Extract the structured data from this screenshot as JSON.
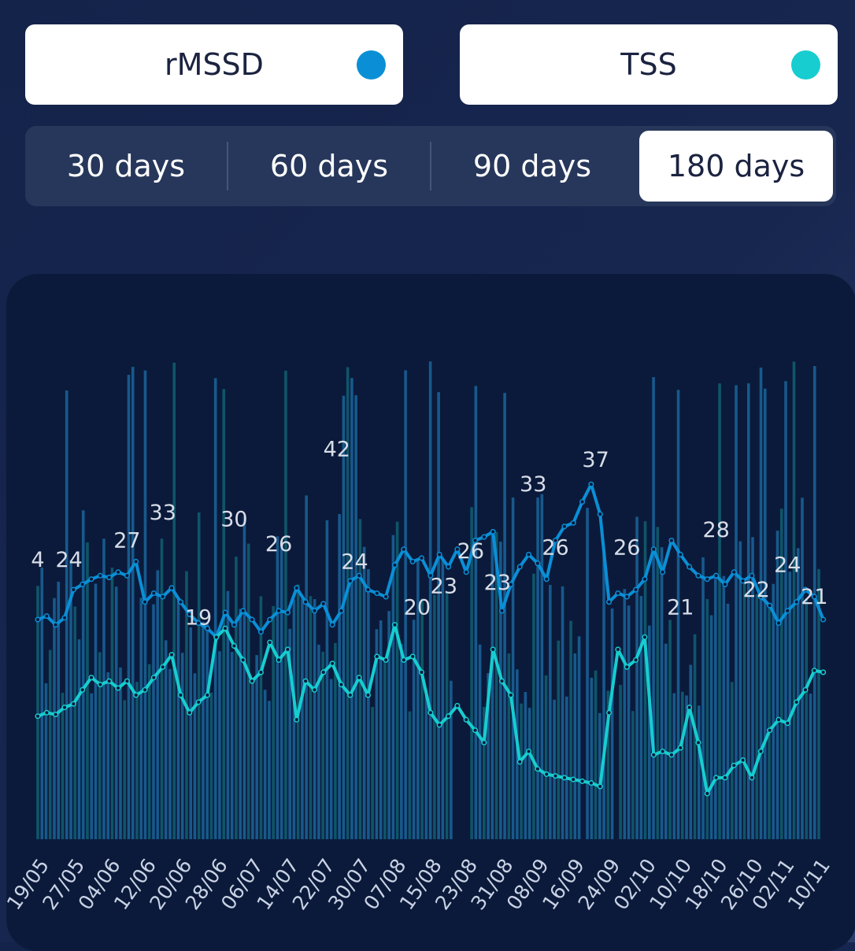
{
  "metrics": [
    {
      "label": "rMSSD",
      "color": "#0a8fd6"
    },
    {
      "label": "TSS",
      "color": "#17cdd0"
    }
  ],
  "ranges": [
    {
      "label": "30 days",
      "active": false
    },
    {
      "label": "60 days",
      "active": false
    },
    {
      "label": "90 days",
      "active": false
    },
    {
      "label": "180 days",
      "active": true
    }
  ],
  "chart_data": {
    "type": "line",
    "x_ticks": [
      "19/05",
      "27/05",
      "04/06",
      "12/06",
      "20/06",
      "28/06",
      "06/07",
      "14/07",
      "22/07",
      "30/07",
      "07/08",
      "15/08",
      "23/08",
      "31/08",
      "08/09",
      "16/09",
      "24/09",
      "02/10",
      "10/10",
      "18/10",
      "26/10",
      "02/11",
      "10/11"
    ],
    "series": [
      {
        "name": "rMSSD",
        "color": "#0a8fd6",
        "points": [
          [
            "19/05",
            0.95
          ],
          [
            "21/05",
            0.97
          ],
          [
            "23/05",
            0.92
          ],
          [
            "25/05",
            0.96
          ],
          [
            "27/05",
            1.12
          ],
          [
            "29/05",
            1.15
          ],
          [
            "31/05",
            1.18
          ],
          [
            "02/06",
            1.2
          ],
          [
            "04/06",
            1.19
          ],
          [
            "06/06",
            1.22
          ],
          [
            "08/06",
            1.2
          ],
          [
            "10/06",
            1.28
          ],
          [
            "12/06",
            1.05
          ],
          [
            "14/06",
            1.1
          ],
          [
            "16/06",
            1.08
          ],
          [
            "18/06",
            1.13
          ],
          [
            "20/06",
            1.05
          ],
          [
            "22/06",
            0.98
          ],
          [
            "24/06",
            0.93
          ],
          [
            "26/06",
            0.9
          ],
          [
            "28/06",
            0.85
          ],
          [
            "30/06",
            0.99
          ],
          [
            "02/07",
            0.92
          ],
          [
            "04/07",
            1.0
          ],
          [
            "06/07",
            0.95
          ],
          [
            "08/07",
            0.88
          ],
          [
            "10/07",
            0.95
          ],
          [
            "12/07",
            1.0
          ],
          [
            "14/07",
            0.99
          ],
          [
            "16/07",
            1.13
          ],
          [
            "18/07",
            1.05
          ],
          [
            "20/07",
            1.0
          ],
          [
            "22/07",
            1.04
          ],
          [
            "24/07",
            0.92
          ],
          [
            "26/07",
            1.0
          ],
          [
            "28/07",
            1.17
          ],
          [
            "30/07",
            1.2
          ],
          [
            "01/08",
            1.12
          ],
          [
            "03/08",
            1.1
          ],
          [
            "05/08",
            1.08
          ],
          [
            "07/08",
            1.26
          ],
          [
            "09/08",
            1.35
          ],
          [
            "11/08",
            1.28
          ],
          [
            "13/08",
            1.3
          ],
          [
            "15/08",
            1.2
          ],
          [
            "17/08",
            1.32
          ],
          [
            "19/08",
            1.25
          ],
          [
            "21/08",
            1.35
          ],
          [
            "23/08",
            1.22
          ],
          [
            "25/08",
            1.4
          ],
          [
            "27/08",
            1.42
          ],
          [
            "29/08",
            1.45
          ],
          [
            "31/08",
            1.0
          ],
          [
            "02/09",
            1.15
          ],
          [
            "04/09",
            1.25
          ],
          [
            "06/09",
            1.32
          ],
          [
            "08/09",
            1.27
          ],
          [
            "10/09",
            1.18
          ],
          [
            "12/09",
            1.4
          ],
          [
            "14/09",
            1.48
          ],
          [
            "16/09",
            1.5
          ],
          [
            "18/09",
            1.62
          ],
          [
            "20/09",
            1.72
          ],
          [
            "22/09",
            1.55
          ],
          [
            "24/09",
            1.05
          ],
          [
            "26/09",
            1.1
          ],
          [
            "28/09",
            1.08
          ],
          [
            "30/09",
            1.12
          ],
          [
            "02/10",
            1.18
          ],
          [
            "04/10",
            1.35
          ],
          [
            "06/10",
            1.22
          ],
          [
            "08/10",
            1.4
          ],
          [
            "10/10",
            1.32
          ],
          [
            "12/10",
            1.25
          ],
          [
            "14/10",
            1.2
          ],
          [
            "16/10",
            1.18
          ],
          [
            "18/10",
            1.2
          ],
          [
            "20/10",
            1.15
          ],
          [
            "22/10",
            1.22
          ],
          [
            "24/10",
            1.17
          ],
          [
            "26/10",
            1.2
          ],
          [
            "28/10",
            1.08
          ],
          [
            "30/10",
            1.03
          ],
          [
            "01/11",
            0.93
          ],
          [
            "03/11",
            1.0
          ],
          [
            "05/11",
            1.05
          ],
          [
            "07/11",
            1.12
          ],
          [
            "09/11",
            1.08
          ],
          [
            "11/11",
            0.95
          ]
        ]
      },
      {
        "name": "TSS",
        "color": "#17cdd0",
        "points": [
          [
            "19/05",
            0.4
          ],
          [
            "21/05",
            0.42
          ],
          [
            "23/05",
            0.41
          ],
          [
            "25/05",
            0.45
          ],
          [
            "27/05",
            0.47
          ],
          [
            "29/05",
            0.55
          ],
          [
            "31/05",
            0.62
          ],
          [
            "02/06",
            0.58
          ],
          [
            "04/06",
            0.6
          ],
          [
            "06/06",
            0.56
          ],
          [
            "08/06",
            0.6
          ],
          [
            "10/06",
            0.52
          ],
          [
            "12/06",
            0.55
          ],
          [
            "14/06",
            0.62
          ],
          [
            "16/06",
            0.68
          ],
          [
            "18/06",
            0.75
          ],
          [
            "20/06",
            0.52
          ],
          [
            "22/06",
            0.42
          ],
          [
            "24/06",
            0.48
          ],
          [
            "26/06",
            0.52
          ],
          [
            "28/06",
            0.85
          ],
          [
            "30/06",
            0.9
          ],
          [
            "02/07",
            0.8
          ],
          [
            "04/07",
            0.72
          ],
          [
            "06/07",
            0.6
          ],
          [
            "08/07",
            0.65
          ],
          [
            "10/07",
            0.82
          ],
          [
            "12/07",
            0.72
          ],
          [
            "14/07",
            0.78
          ],
          [
            "16/07",
            0.38
          ],
          [
            "18/07",
            0.6
          ],
          [
            "20/07",
            0.55
          ],
          [
            "22/07",
            0.65
          ],
          [
            "24/07",
            0.7
          ],
          [
            "26/07",
            0.58
          ],
          [
            "28/07",
            0.52
          ],
          [
            "30/07",
            0.62
          ],
          [
            "01/08",
            0.52
          ],
          [
            "03/08",
            0.74
          ],
          [
            "05/08",
            0.72
          ],
          [
            "07/08",
            0.92
          ],
          [
            "09/08",
            0.72
          ],
          [
            "11/08",
            0.74
          ],
          [
            "13/08",
            0.65
          ],
          [
            "15/08",
            0.42
          ],
          [
            "17/08",
            0.35
          ],
          [
            "19/08",
            0.4
          ],
          [
            "21/08",
            0.46
          ],
          [
            "23/08",
            0.38
          ],
          [
            "25/08",
            0.32
          ],
          [
            "27/08",
            0.25
          ],
          [
            "29/08",
            0.78
          ],
          [
            "31/08",
            0.6
          ],
          [
            "02/09",
            0.52
          ],
          [
            "04/09",
            0.14
          ],
          [
            "06/09",
            0.2
          ],
          [
            "08/09",
            0.1
          ],
          [
            "10/09",
            0.07
          ],
          [
            "12/09",
            0.06
          ],
          [
            "14/09",
            0.05
          ],
          [
            "16/09",
            0.04
          ],
          [
            "18/09",
            0.03
          ],
          [
            "20/09",
            0.02
          ],
          [
            "22/09",
            0.0
          ],
          [
            "24/09",
            0.42
          ],
          [
            "26/09",
            0.78
          ],
          [
            "28/09",
            0.68
          ],
          [
            "30/09",
            0.72
          ],
          [
            "02/10",
            0.85
          ],
          [
            "04/10",
            0.18
          ],
          [
            "06/10",
            0.2
          ],
          [
            "08/10",
            0.18
          ],
          [
            "10/10",
            0.22
          ],
          [
            "12/10",
            0.45
          ],
          [
            "14/10",
            0.25
          ],
          [
            "16/10",
            -0.04
          ],
          [
            "18/10",
            0.05
          ],
          [
            "20/10",
            0.05
          ],
          [
            "22/10",
            0.12
          ],
          [
            "24/10",
            0.15
          ],
          [
            "26/10",
            0.05
          ],
          [
            "28/10",
            0.2
          ],
          [
            "30/10",
            0.32
          ],
          [
            "01/11",
            0.38
          ],
          [
            "03/11",
            0.36
          ],
          [
            "05/11",
            0.48
          ],
          [
            "07/11",
            0.55
          ],
          [
            "09/11",
            0.66
          ],
          [
            "11/11",
            0.65
          ]
        ]
      }
    ],
    "labels": [
      {
        "text": "4",
        "x": "19/05",
        "y": 1.25
      },
      {
        "text": "24",
        "x": "26/05",
        "y": 1.25
      },
      {
        "text": "27",
        "x": "08/06",
        "y": 1.36
      },
      {
        "text": "33",
        "x": "16/06",
        "y": 1.52
      },
      {
        "text": "19",
        "x": "24/06",
        "y": 0.92
      },
      {
        "text": "30",
        "x": "02/07",
        "y": 1.48
      },
      {
        "text": "26",
        "x": "12/07",
        "y": 1.34
      },
      {
        "text": "42",
        "x": "25/07",
        "y": 1.88
      },
      {
        "text": "24",
        "x": "29/07",
        "y": 1.24
      },
      {
        "text": "20",
        "x": "12/08",
        "y": 0.98
      },
      {
        "text": "23",
        "x": "18/08",
        "y": 1.1
      },
      {
        "text": "26",
        "x": "24/08",
        "y": 1.3
      },
      {
        "text": "23",
        "x": "30/08",
        "y": 1.12
      },
      {
        "text": "33",
        "x": "07/09",
        "y": 1.68
      },
      {
        "text": "26",
        "x": "12/09",
        "y": 1.32
      },
      {
        "text": "37",
        "x": "21/09",
        "y": 1.82
      },
      {
        "text": "26",
        "x": "28/09",
        "y": 1.32
      },
      {
        "text": "21",
        "x": "10/10",
        "y": 0.98
      },
      {
        "text": "28",
        "x": "18/10",
        "y": 1.42
      },
      {
        "text": "22",
        "x": "27/10",
        "y": 1.08
      },
      {
        "text": "24",
        "x": "03/11",
        "y": 1.22
      },
      {
        "text": "21",
        "x": "09/11",
        "y": 1.04
      }
    ],
    "bars": {
      "color": "#1c6fa8",
      "secondary_color": "#126a7a"
    },
    "ylim": [
      -0.3,
      2.2
    ]
  }
}
